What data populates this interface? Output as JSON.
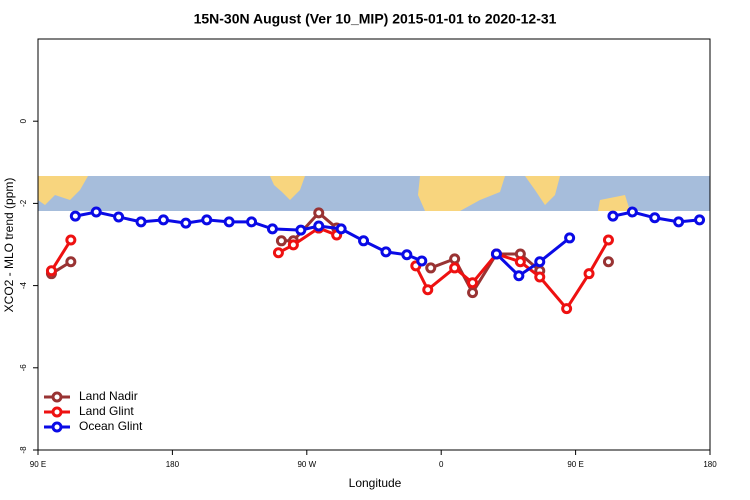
{
  "chart_data": {
    "type": "line",
    "title": "15N-30N August (Ver 10_MIP)   2015-01-01 to 2020-12-31",
    "x_label": "Longitude",
    "y_label": "XCO2 - MLO trend (ppm)",
    "xlim": [
      90,
      540
    ],
    "ylim": [
      -8,
      2
    ],
    "xticks": [
      {
        "value": 90,
        "label": "90 E"
      },
      180,
      {
        "value": 270,
        "label": "90 W"
      },
      {
        "value": 360,
        "label": "0"
      },
      {
        "value": 450,
        "label": "90 E"
      },
      {
        "value": 540,
        "label": "180"
      }
    ],
    "yticks": [
      -8,
      -6,
      -4,
      -2,
      0
    ],
    "legend": "bottom-left",
    "series": [
      {
        "name": "Land Nadir",
        "color": "#993333",
        "x": [
          99,
          112,
          null,
          253,
          261,
          278,
          290,
          null,
          353,
          369,
          381,
          397,
          413,
          426,
          null,
          472
        ],
        "values": [
          -3.71,
          -3.42,
          null,
          -2.91,
          -2.91,
          -2.23,
          -2.6,
          null,
          -3.57,
          -3.35,
          -4.17,
          -3.23,
          -3.23,
          -3.64,
          null,
          -3.42
        ]
      },
      {
        "name": "Land Glint",
        "color": "#ee1111",
        "x": [
          99,
          112,
          null,
          251,
          261,
          278,
          290,
          null,
          343,
          351,
          369,
          381,
          397,
          413,
          426,
          444,
          459,
          472
        ],
        "values": [
          -3.64,
          -2.89,
          null,
          -3.2,
          -3.01,
          -2.6,
          -2.77,
          null,
          -3.52,
          -4.1,
          -3.57,
          -3.93,
          -3.23,
          -3.42,
          -3.79,
          -4.56,
          -3.71,
          -2.89
        ]
      },
      {
        "name": "Ocean Glint",
        "color": "#0a0ae6",
        "x": [
          115,
          129,
          144,
          159,
          174,
          189,
          203,
          218,
          233,
          247,
          266,
          278,
          293,
          308,
          323,
          337,
          347,
          null,
          397,
          412,
          426,
          446,
          null,
          475,
          488,
          503,
          519,
          533
        ],
        "values": [
          -2.31,
          -2.21,
          -2.33,
          -2.45,
          -2.4,
          -2.48,
          -2.4,
          -2.45,
          -2.45,
          -2.62,
          -2.65,
          -2.55,
          -2.62,
          -2.91,
          -3.18,
          -3.25,
          -3.4,
          null,
          -3.23,
          -3.76,
          -3.42,
          -2.84,
          null,
          -2.31,
          -2.21,
          -2.35,
          -2.45,
          -2.4
        ]
      }
    ]
  }
}
